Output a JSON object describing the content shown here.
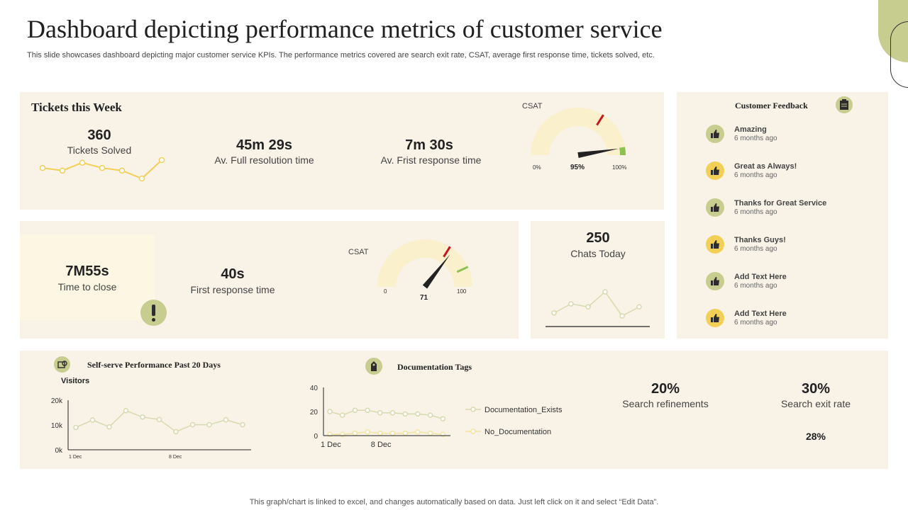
{
  "header": {
    "title": "Dashboard depicting performance metrics of customer service",
    "subtitle": "This slide showcases dashboard depicting major customer service KPIs. The performance metrics covered are search exit rate, CSAT,  average first response time, tickets solved, etc."
  },
  "tickets": {
    "section_title": "Tickets this Week",
    "solved_value": "360",
    "solved_label": "Tickets Solved",
    "resolution_value": "45m 29s",
    "resolution_label": "Av. Full resolution time",
    "first_response_value": "7m 30s",
    "first_response_label": "Av. Frist response time",
    "csat_label": "CSAT",
    "csat_min": "0%",
    "csat_value": "95%",
    "csat_max": "100%",
    "csat_level": 95
  },
  "middle": {
    "close_value": "7M55s",
    "close_label": "Time to close",
    "response_value": "40s",
    "response_label": "First response time",
    "csat_label": "CSAT",
    "csat_min": "0",
    "csat_value": "71",
    "csat_max": "100",
    "csat_level": 71
  },
  "chats": {
    "value": "250",
    "label": "Chats Today"
  },
  "feedback": {
    "section_title": "Customer  Feedback",
    "items": [
      {
        "title": "Amazing",
        "time": "6 months ago",
        "color": "olive"
      },
      {
        "title": "Great as Always!",
        "time": "6 months ago",
        "color": "gold"
      },
      {
        "title": "Thanks for Great Service",
        "time": "6 months ago",
        "color": "olive"
      },
      {
        "title": "Thanks Guys!",
        "time": "6 months ago",
        "color": "gold"
      },
      {
        "title": "Add Text Here",
        "time": "6 months ago",
        "color": "olive"
      },
      {
        "title": "Add Text Here",
        "time": "6 months ago",
        "color": "gold"
      }
    ]
  },
  "bottom": {
    "selfserve_title": "Self-serve Performance  Past 20 Days",
    "visitors_label": "Visitors",
    "doc_title": "Documentation   Tags",
    "search_ref_value": "20%",
    "search_ref_label": "Search refinements",
    "exit_value": "30%",
    "exit_label": "Search exit rate",
    "exit_extra": "28%"
  },
  "chart_data": [
    {
      "type": "line",
      "series": [
        {
          "values": [
            12,
            11,
            14,
            12,
            11,
            8,
            15
          ]
        }
      ]
    },
    {
      "type": "line",
      "series": [
        {
          "values": [
            3,
            6,
            5,
            10,
            2,
            5
          ]
        }
      ]
    },
    {
      "type": "line",
      "ylabel": "Visitors",
      "yticks": [
        "0k",
        "10k",
        "20k"
      ],
      "xticks": [
        "1 Dec",
        "8 Dec"
      ],
      "ylim": [
        0,
        20000
      ],
      "series": [
        {
          "values": [
            9000,
            12000,
            9200,
            15800,
            13200,
            12200,
            7300,
            10100,
            10100,
            12100,
            10100
          ]
        }
      ]
    },
    {
      "type": "line",
      "yticks": [
        "0",
        "20",
        "40"
      ],
      "xticks": [
        "1 Dec",
        "8 Dec"
      ],
      "ylim": [
        0,
        40
      ],
      "series": [
        {
          "name": "Documentation_Exists",
          "values": [
            20,
            17,
            21,
            21,
            19,
            19,
            18,
            18,
            17,
            14
          ]
        },
        {
          "name": "No_Documentation",
          "values": [
            1,
            1,
            2,
            3,
            2,
            2,
            2,
            3,
            2,
            1
          ]
        }
      ]
    }
  ],
  "footer": {
    "text": "This graph/chart is linked to excel,  and changes automatically based on data. Just left click on it and select “Edit Data”."
  }
}
